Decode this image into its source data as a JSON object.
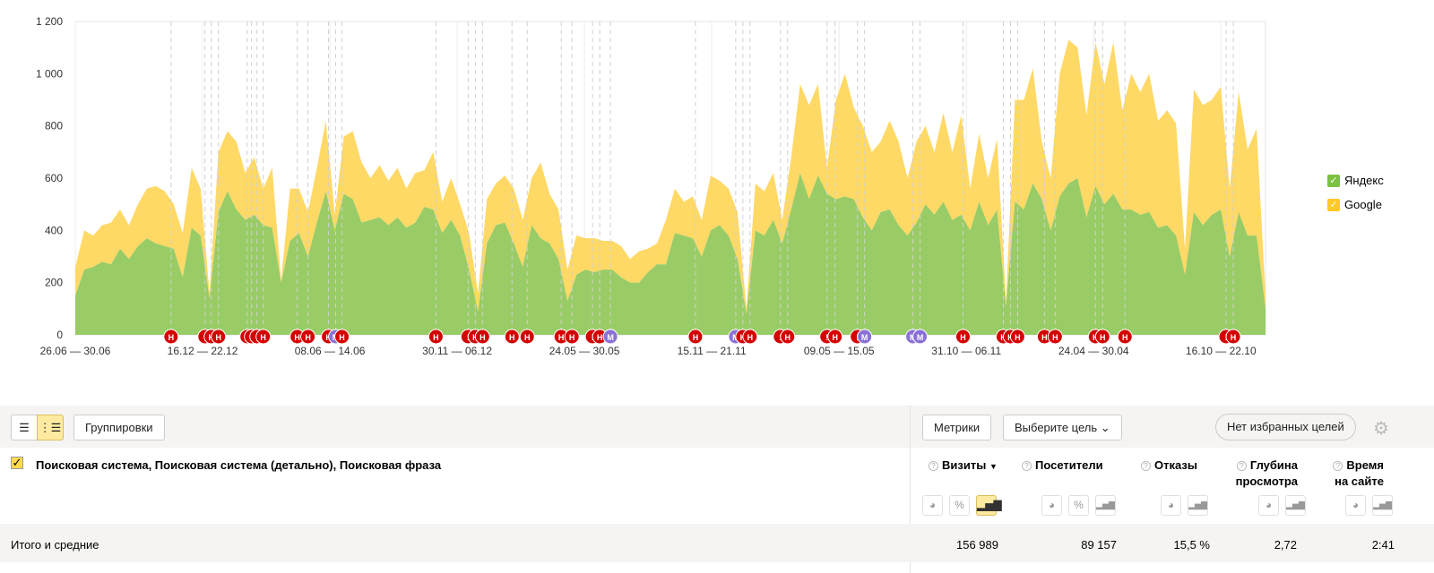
{
  "chart_data": {
    "type": "area",
    "stacked": true,
    "ylim": [
      0,
      1200
    ],
    "yticks": [
      0,
      200,
      400,
      600,
      800,
      1000,
      1200
    ],
    "ytick_labels": [
      "0",
      "200",
      "400",
      "600",
      "800",
      "1 000",
      "1 200"
    ],
    "xtick_labels": [
      "26.06 — 30.06",
      "16.12 — 22.12",
      "08.06 — 14.06",
      "30.11 — 06.12",
      "24.05 — 30.05",
      "15.11 — 21.11",
      "09.05 — 15.05",
      "31.10 — 06.11",
      "24.04 — 30.04",
      "16.10 — 22.10"
    ],
    "series": [
      {
        "name": "Яндекс",
        "color": "#99cc66",
        "values": [
          150,
          250,
          260,
          280,
          270,
          330,
          290,
          340,
          370,
          350,
          340,
          330,
          220,
          410,
          380,
          140,
          470,
          550,
          480,
          440,
          460,
          420,
          410,
          200,
          360,
          390,
          300,
          430,
          550,
          400,
          540,
          520,
          430,
          440,
          450,
          420,
          450,
          410,
          430,
          490,
          480,
          390,
          440,
          380,
          250,
          90,
          350,
          420,
          430,
          350,
          260,
          420,
          370,
          350,
          290,
          130,
          230,
          250,
          240,
          250,
          250,
          220,
          200,
          200,
          240,
          270,
          270,
          390,
          380,
          370,
          300,
          400,
          420,
          380,
          290,
          80,
          400,
          380,
          440,
          350,
          480,
          620,
          520,
          610,
          540,
          520,
          530,
          520,
          450,
          400,
          470,
          480,
          420,
          380,
          430,
          500,
          460,
          510,
          440,
          460,
          400,
          510,
          420,
          480,
          110,
          510,
          480,
          580,
          520,
          400,
          530,
          580,
          600,
          450,
          570,
          500,
          540,
          480,
          480,
          460,
          470,
          410,
          420,
          380,
          230,
          470,
          420,
          460,
          480,
          300,
          470,
          380,
          380,
          100
        ]
      },
      {
        "name": "Google",
        "color": "#ffd966",
        "values": [
          110,
          150,
          120,
          140,
          160,
          150,
          130,
          160,
          190,
          220,
          210,
          170,
          170,
          230,
          180,
          20,
          230,
          230,
          260,
          180,
          220,
          140,
          230,
          10,
          200,
          170,
          170,
          210,
          270,
          60,
          220,
          260,
          230,
          160,
          200,
          170,
          190,
          150,
          190,
          140,
          220,
          120,
          160,
          120,
          140,
          70,
          170,
          160,
          180,
          210,
          180,
          180,
          290,
          190,
          190,
          120,
          150,
          120,
          130,
          110,
          110,
          120,
          90,
          120,
          90,
          80,
          170,
          170,
          130,
          160,
          140,
          210,
          170,
          180,
          180,
          20,
          180,
          170,
          180,
          90,
          200,
          340,
          360,
          350,
          100,
          380,
          470,
          350,
          350,
          300,
          270,
          340,
          320,
          220,
          310,
          300,
          240,
          340,
          260,
          380,
          160,
          260,
          180,
          270,
          20,
          390,
          420,
          440,
          220,
          200,
          470,
          550,
          500,
          390,
          550,
          460,
          580,
          380,
          520,
          470,
          530,
          410,
          440,
          430,
          100,
          470,
          460,
          440,
          470,
          260,
          460,
          330,
          410,
          50
        ]
      }
    ],
    "annotations": [
      [
        "Н",
        10.7
      ],
      [
        "!",
        14.5
      ],
      [
        "Н",
        15.2
      ],
      [
        "Н",
        16
      ],
      [
        "!",
        19.2
      ],
      [
        "!",
        19.7
      ],
      [
        "!",
        20.3
      ],
      [
        "Н",
        21
      ],
      [
        "Н",
        24.8
      ],
      [
        "Н",
        26
      ],
      [
        "Н",
        28.3
      ],
      [
        "М",
        29.1
      ],
      [
        "Н",
        29.8
      ],
      [
        "Н",
        40.3
      ],
      [
        "!",
        43.9
      ],
      [
        "Н",
        44.7
      ],
      [
        "Н",
        45.5
      ],
      [
        "Н",
        48.8
      ],
      [
        "Н",
        50.5
      ],
      [
        "Н",
        54.3
      ],
      [
        "Н",
        55.5
      ],
      [
        "!",
        57.8
      ],
      [
        "Н",
        58.6
      ],
      [
        "М",
        59.8
      ],
      [
        "Н",
        69.3
      ],
      [
        "М",
        73.8
      ],
      [
        "Н",
        74.6
      ],
      [
        "Н",
        75.4
      ],
      [
        "!",
        78.8
      ],
      [
        "Н",
        79.6
      ],
      [
        "!",
        84
      ],
      [
        "Н",
        84.9
      ],
      [
        "!",
        87.4
      ],
      [
        "М",
        88.2
      ],
      [
        "М",
        93.6
      ],
      [
        "М",
        94.4
      ],
      [
        "Н",
        99.2
      ],
      [
        "Н",
        103.7
      ],
      [
        "Н",
        104.5
      ],
      [
        "Н",
        105.3
      ],
      [
        "Н",
        108.3
      ],
      [
        "Н",
        109.5
      ],
      [
        "Н",
        114
      ],
      [
        "Н",
        114.8
      ],
      [
        "Н",
        117.3
      ],
      [
        "!",
        128.6
      ],
      [
        "Н",
        129.4
      ]
    ]
  },
  "legend": [
    {
      "label": "Яндекс",
      "color": "#7cc142"
    },
    {
      "label": "Google",
      "color": "#ffc926"
    }
  ],
  "toolbar": {
    "groupings": "Группировки",
    "metrics": "Метрики",
    "goal": "Выберите цель",
    "favorites": "Нет избранных целей"
  },
  "table": {
    "dimensions": "Поисковая система, Поисковая система (детально), Поисковая фраза",
    "columns": [
      {
        "l1": "Визиты",
        "sort": "▼"
      },
      {
        "l1": "Посетители"
      },
      {
        "l1": "Отказы"
      },
      {
        "l1": "Глубина",
        "l2": "просмотра"
      },
      {
        "l1": "Время",
        "l2": "на сайте"
      }
    ],
    "totals_label": "Итого и средние",
    "totals": [
      "156 989",
      "89 157",
      "15,5 %",
      "2,72",
      "2:41"
    ]
  }
}
